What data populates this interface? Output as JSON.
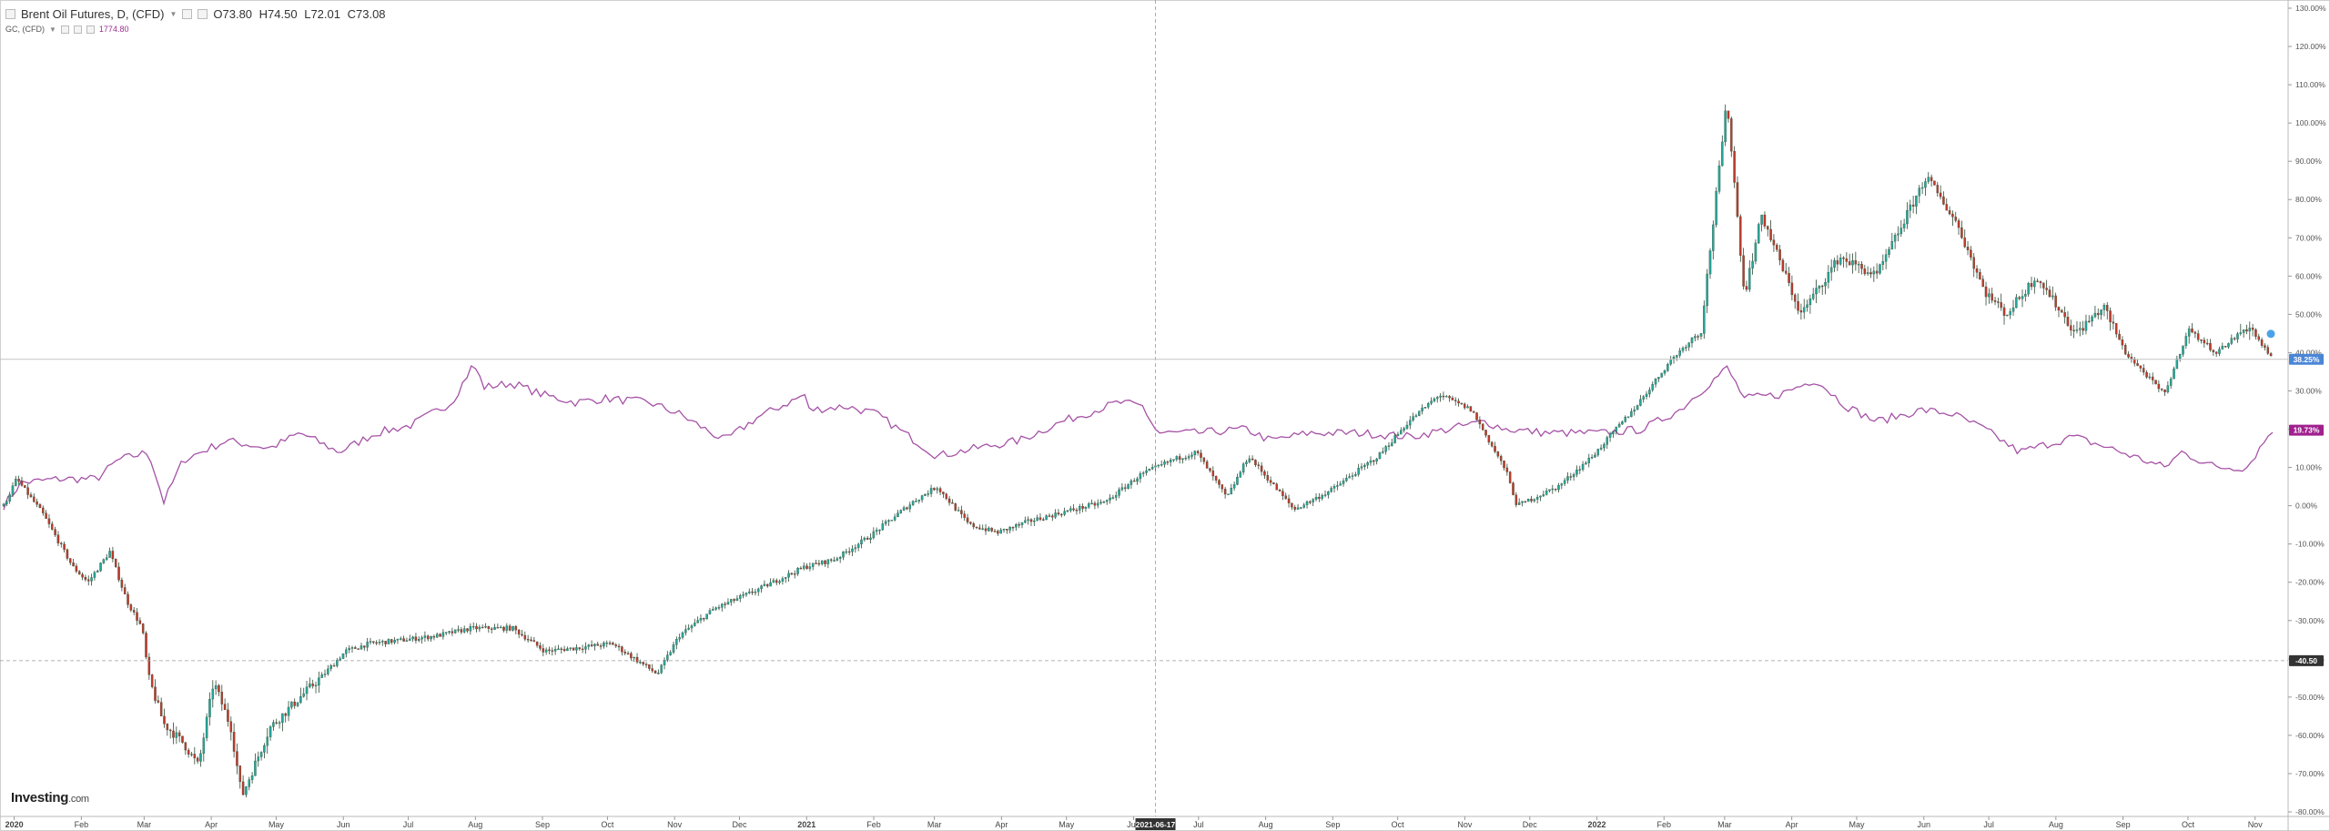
{
  "header": {
    "symbol": "Brent Oil Futures, D, (CFD)",
    "open": "O73.80",
    "high": "H74.50",
    "low": "L72.01",
    "close": "C73.08",
    "compare_symbol": "GC, (CFD)",
    "compare_value": "1774.80"
  },
  "brand": {
    "name": "Investing",
    "suffix": ".com"
  },
  "colors": {
    "up": "#26a69a",
    "down": "#c0392b",
    "candle_dark": "#2e4a35",
    "gold_line": "#a552a5",
    "last_badge": "#4a86d6",
    "gold_badge": "#a0208e",
    "cross_badge": "#333333"
  },
  "chart_data": {
    "type": "line",
    "y_axis_unit": "%",
    "ylim": [
      -80,
      130
    ],
    "y_ticks": [
      "130.00%",
      "120.00%",
      "110.00%",
      "100.00%",
      "90.00%",
      "80.00%",
      "70.00%",
      "60.00%",
      "50.00%",
      "40.00%",
      "30.00%",
      "20.00%",
      "10.00%",
      "0.00%",
      "-10.00%",
      "-20.00%",
      "-30.00%",
      "-40.00%",
      "-50.00%",
      "-60.00%",
      "-70.00%",
      "-80.00%"
    ],
    "x_ticks": [
      "2020",
      "Feb",
      "Mar",
      "Apr",
      "May",
      "Jun",
      "Jul",
      "Aug",
      "Sep",
      "Oct",
      "Nov",
      "Dec",
      "2021",
      "Feb",
      "Mar",
      "Apr",
      "May",
      "Jun",
      "Jul",
      "Aug",
      "Sep",
      "Oct",
      "Nov",
      "Dec",
      "2022",
      "Feb",
      "Mar",
      "Apr",
      "May",
      "Jun",
      "Jul",
      "Aug",
      "Sep",
      "Oct",
      "Nov"
    ],
    "x_range": [
      "2020-01-02",
      "2022-11-15"
    ],
    "crosshair": {
      "date": "2021-06-17",
      "value": "-40.50"
    },
    "badges": {
      "brent": "38.25%",
      "gold": "19.73%"
    },
    "series": [
      {
        "name": "Brent Oil Futures, D, (CFD)",
        "style": "candles",
        "points": [
          [
            "2020-01-02",
            0
          ],
          [
            "2020-01-08",
            7
          ],
          [
            "2020-01-20",
            -2
          ],
          [
            "2020-02-03",
            -16
          ],
          [
            "2020-02-10",
            -20
          ],
          [
            "2020-02-20",
            -12
          ],
          [
            "2020-02-28",
            -25
          ],
          [
            "2020-03-06",
            -32
          ],
          [
            "2020-03-09",
            -45
          ],
          [
            "2020-03-16",
            -57
          ],
          [
            "2020-03-25",
            -62
          ],
          [
            "2020-04-01",
            -68
          ],
          [
            "2020-04-08",
            -46
          ],
          [
            "2020-04-16",
            -58
          ],
          [
            "2020-04-21",
            -76
          ],
          [
            "2020-05-04",
            -58
          ],
          [
            "2020-05-18",
            -50
          ],
          [
            "2020-05-29",
            -44
          ],
          [
            "2020-06-08",
            -38
          ],
          [
            "2020-06-19",
            -36
          ],
          [
            "2020-07-06",
            -35
          ],
          [
            "2020-07-20",
            -34
          ],
          [
            "2020-08-05",
            -32
          ],
          [
            "2020-08-24",
            -32
          ],
          [
            "2020-09-08",
            -38
          ],
          [
            "2020-09-25",
            -37
          ],
          [
            "2020-10-09",
            -36
          ],
          [
            "2020-10-30",
            -44
          ],
          [
            "2020-11-09",
            -34
          ],
          [
            "2020-11-25",
            -27
          ],
          [
            "2020-12-15",
            -22
          ],
          [
            "2021-01-06",
            -16
          ],
          [
            "2021-01-20",
            -14
          ],
          [
            "2021-02-05",
            -8
          ],
          [
            "2021-02-25",
            1
          ],
          [
            "2021-03-08",
            5
          ],
          [
            "2021-03-23",
            -5
          ],
          [
            "2021-04-05",
            -7
          ],
          [
            "2021-04-20",
            -4
          ],
          [
            "2021-05-10",
            -1
          ],
          [
            "2021-05-25",
            1
          ],
          [
            "2021-06-10",
            8
          ],
          [
            "2021-06-25",
            12
          ],
          [
            "2021-07-06",
            14
          ],
          [
            "2021-07-20",
            2
          ],
          [
            "2021-07-30",
            13
          ],
          [
            "2021-08-20",
            -1
          ],
          [
            "2021-09-06",
            4
          ],
          [
            "2021-09-28",
            13
          ],
          [
            "2021-10-12",
            22
          ],
          [
            "2021-10-26",
            29
          ],
          [
            "2021-11-10",
            25
          ],
          [
            "2021-11-26",
            9
          ],
          [
            "2021-12-01",
            0
          ],
          [
            "2021-12-20",
            5
          ],
          [
            "2022-01-05",
            13
          ],
          [
            "2022-01-25",
            26
          ],
          [
            "2022-02-10",
            38
          ],
          [
            "2022-02-24",
            46
          ],
          [
            "2022-03-08",
            106
          ],
          [
            "2022-03-16",
            55
          ],
          [
            "2022-03-24",
            76
          ],
          [
            "2022-04-11",
            50
          ],
          [
            "2022-04-29",
            65
          ],
          [
            "2022-05-16",
            60
          ],
          [
            "2022-06-08",
            86
          ],
          [
            "2022-06-22",
            74
          ],
          [
            "2022-07-05",
            56
          ],
          [
            "2022-07-15",
            50
          ],
          [
            "2022-07-29",
            60
          ],
          [
            "2022-08-16",
            45
          ],
          [
            "2022-08-29",
            52
          ],
          [
            "2022-09-08",
            40
          ],
          [
            "2022-09-26",
            29
          ],
          [
            "2022-10-07",
            46
          ],
          [
            "2022-10-20",
            40
          ],
          [
            "2022-11-04",
            47
          ],
          [
            "2022-11-15",
            38
          ]
        ]
      },
      {
        "name": "GC, (CFD)",
        "style": "line",
        "points": [
          [
            "2020-01-02",
            0
          ],
          [
            "2020-01-10",
            6
          ],
          [
            "2020-01-28",
            7
          ],
          [
            "2020-02-14",
            7
          ],
          [
            "2020-02-24",
            12
          ],
          [
            "2020-03-09",
            14
          ],
          [
            "2020-03-16",
            1
          ],
          [
            "2020-03-25",
            12
          ],
          [
            "2020-04-14",
            17
          ],
          [
            "2020-05-04",
            15
          ],
          [
            "2020-05-18",
            19
          ],
          [
            "2020-06-05",
            14
          ],
          [
            "2020-06-22",
            19
          ],
          [
            "2020-07-08",
            21
          ],
          [
            "2020-07-27",
            27
          ],
          [
            "2020-08-06",
            37
          ],
          [
            "2020-08-11",
            31
          ],
          [
            "2020-08-24",
            32
          ],
          [
            "2020-09-07",
            29
          ],
          [
            "2020-09-22",
            27
          ],
          [
            "2020-10-06",
            28
          ],
          [
            "2020-10-26",
            27
          ],
          [
            "2020-11-09",
            24
          ],
          [
            "2020-11-30",
            17
          ],
          [
            "2020-12-15",
            23
          ],
          [
            "2021-01-06",
            29
          ],
          [
            "2021-01-08",
            25
          ],
          [
            "2021-01-25",
            26
          ],
          [
            "2021-02-08",
            24
          ],
          [
            "2021-02-26",
            17
          ],
          [
            "2021-03-08",
            13
          ],
          [
            "2021-03-26",
            15
          ],
          [
            "2021-04-15",
            17
          ],
          [
            "2021-05-05",
            22
          ],
          [
            "2021-05-31",
            27
          ],
          [
            "2021-06-11",
            26
          ],
          [
            "2021-06-18",
            19
          ],
          [
            "2021-07-06",
            19
          ],
          [
            "2021-07-29",
            20
          ],
          [
            "2021-08-09",
            17
          ],
          [
            "2021-08-27",
            19
          ],
          [
            "2021-09-20",
            19
          ],
          [
            "2021-10-13",
            18
          ],
          [
            "2021-11-16",
            22
          ],
          [
            "2021-11-26",
            20
          ],
          [
            "2021-12-15",
            19
          ],
          [
            "2022-01-10",
            19
          ],
          [
            "2022-01-28",
            20
          ],
          [
            "2022-02-14",
            25
          ],
          [
            "2022-03-08,",
            36
          ],
          [
            "2022-03-16",
            28
          ],
          [
            "2022-04-01",
            29
          ],
          [
            "2022-04-18",
            33
          ],
          [
            "2022-05-02",
            26
          ],
          [
            "2022-05-16",
            22
          ],
          [
            "2022-06-06",
            25
          ],
          [
            "2022-06-20",
            24
          ],
          [
            "2022-07-05",
            20
          ],
          [
            "2022-07-21",
            14
          ],
          [
            "2022-08-15",
            18
          ],
          [
            "2022-09-01",
            15
          ],
          [
            "2022-09-26",
            10
          ],
          [
            "2022-10-04",
            14
          ],
          [
            "2022-10-20",
            10
          ],
          [
            "2022-11-03",
            10
          ],
          [
            "2022-11-15",
            20
          ]
        ]
      }
    ]
  }
}
